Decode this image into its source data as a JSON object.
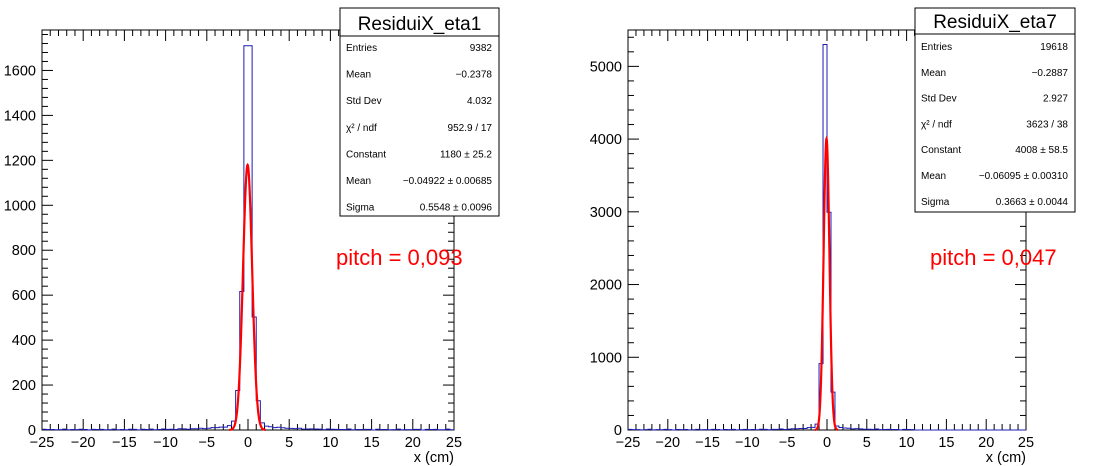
{
  "colors": {
    "histogram": "#1c1cb4",
    "fit": "#ff0000",
    "note": "#ff0000",
    "frame": "#000000"
  },
  "chart_data": [
    {
      "type": "histogram",
      "title": "ResiduiX_eta1",
      "xlabel": "x (cm)",
      "ylabel": "",
      "xlim": [
        -25,
        25
      ],
      "ylim": [
        0,
        1780
      ],
      "x_ticks": [
        -25,
        -20,
        -15,
        -10,
        -5,
        0,
        5,
        10,
        15,
        20,
        25
      ],
      "y_ticks": [
        0,
        200,
        400,
        600,
        800,
        1000,
        1200,
        1400,
        1600
      ],
      "peak_bin": 1710,
      "stats": [
        {
          "label": "Entries",
          "value": "9382"
        },
        {
          "label": "Mean",
          "value": "−0.2378"
        },
        {
          "label": "Std Dev",
          "value": "4.032"
        },
        {
          "label": "χ² / ndf",
          "value": "952.9 / 17"
        },
        {
          "label": "Constant",
          "value": "1180 ± 25.2"
        },
        {
          "label": "Mean",
          "value": "−0.04922 ± 0.00685"
        },
        {
          "label": "Sigma",
          "value": "0.5548 ± 0.0096"
        }
      ],
      "fit": {
        "type": "gaus",
        "constant": 1180,
        "mean": -0.04922,
        "sigma": 0.5548
      },
      "annotation": "pitch =  0,093"
    },
    {
      "type": "histogram",
      "title": "ResiduiX_eta7",
      "xlabel": "x (cm)",
      "ylabel": "",
      "xlim": [
        -25,
        25
      ],
      "ylim": [
        0,
        5500
      ],
      "x_ticks": [
        -25,
        -20,
        -15,
        -10,
        -5,
        0,
        5,
        10,
        15,
        20,
        25
      ],
      "y_ticks": [
        0,
        1000,
        2000,
        3000,
        4000,
        5000
      ],
      "peak_bin": 5300,
      "stats": [
        {
          "label": "Entries",
          "value": "19618"
        },
        {
          "label": "Mean",
          "value": "−0.2887"
        },
        {
          "label": "Std Dev",
          "value": "2.927"
        },
        {
          "label": "χ² / ndf",
          "value": "3623 / 38"
        },
        {
          "label": "Constant",
          "value": "4008 ± 58.5"
        },
        {
          "label": "Mean",
          "value": "−0.06095 ± 0.00310"
        },
        {
          "label": "Sigma",
          "value": "0.3663 ± 0.0044"
        }
      ],
      "fit": {
        "type": "gaus",
        "constant": 4008,
        "mean": -0.06095,
        "sigma": 0.3663
      },
      "annotation": "pitch =  0,047"
    }
  ]
}
